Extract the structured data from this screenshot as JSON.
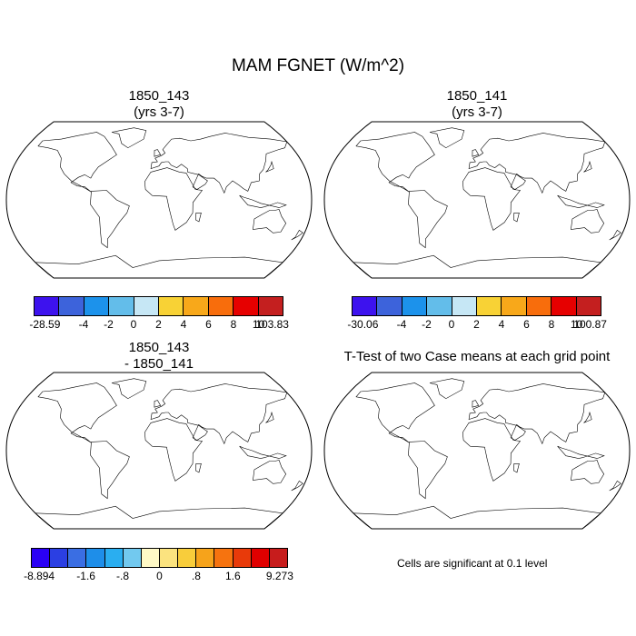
{
  "main_title": "MAM FGNET (W/m^2)",
  "panels": {
    "top_left": {
      "line1": "1850_143",
      "line2": "(yrs 3-7)",
      "colorbar": {
        "colors": [
          "#3d12ee",
          "#3d63db",
          "#1c92eb",
          "#63bdea",
          "#c6e7f5",
          "#f8d235",
          "#f8a81a",
          "#f86d0c",
          "#e60000",
          "#c41f1f"
        ],
        "labels": [
          "-28.59",
          "-4",
          "-2",
          "0",
          "2",
          "4",
          "6",
          "8",
          "10",
          "103.83"
        ]
      }
    },
    "top_right": {
      "line1": "1850_141",
      "line2": "(yrs 3-7)",
      "colorbar": {
        "colors": [
          "#3d12ee",
          "#3d63db",
          "#1c92eb",
          "#63bdea",
          "#c6e7f5",
          "#f8d235",
          "#f8a81a",
          "#f86d0c",
          "#e60000",
          "#c41f1f"
        ],
        "labels": [
          "-30.06",
          "-4",
          "-2",
          "0",
          "2",
          "4",
          "6",
          "8",
          "10",
          "100.87"
        ]
      }
    },
    "bottom_left": {
      "line1": "1850_143",
      "line2": "- 1850_141",
      "colorbar": {
        "colors": [
          "#2a00f5",
          "#2b3fe3",
          "#3a6ee3",
          "#1e8ee9",
          "#2aaef0",
          "#72c9ef",
          "#fff9c6",
          "#fbe37f",
          "#f8cd3b",
          "#f6a31b",
          "#f6730f",
          "#e83a0a",
          "#e00000",
          "#c71c1c"
        ],
        "labels": [
          "-8.894",
          "-1.6",
          "-.8",
          "0",
          ".8",
          "1.6",
          "9.273"
        ]
      }
    },
    "bottom_right": {
      "title": "T-Test of two Case means at each grid point",
      "note": "Cells are significant at 0.1 level",
      "significant_color": "#e60000"
    }
  }
}
